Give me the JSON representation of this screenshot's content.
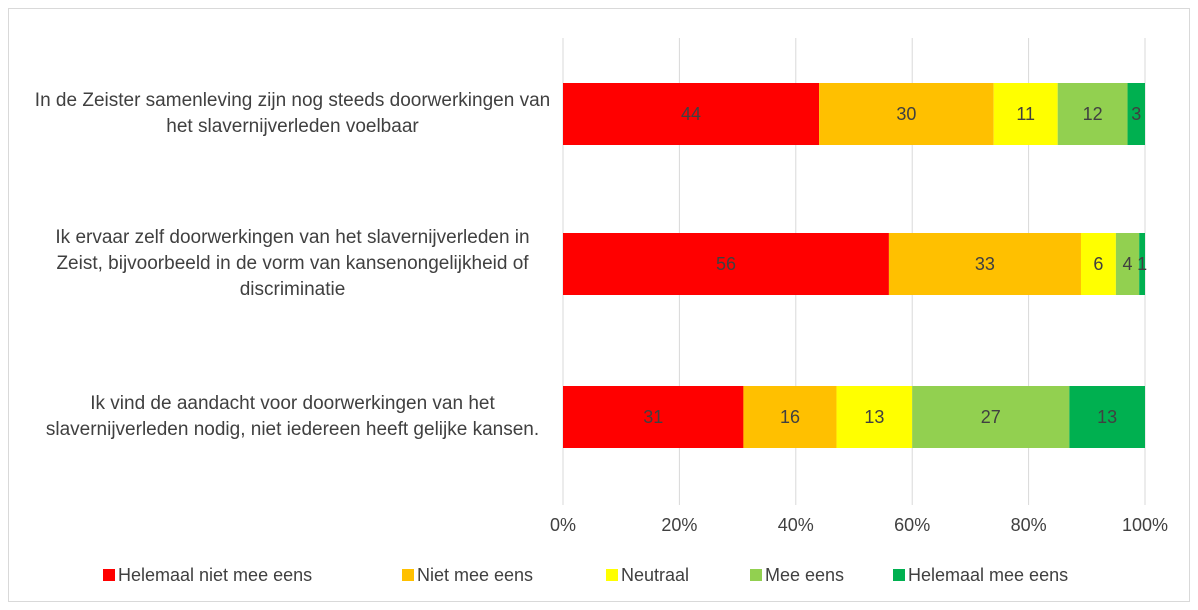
{
  "chart_data": {
    "type": "stacked_bar_horizontal",
    "categories": [
      "In de Zeister samenleving zijn nog steeds doorwerkingen van het slavernijverleden voelbaar",
      "Ik ervaar zelf doorwerkingen van het slavernijverleden in Zeist, bijvoorbeeld in de vorm van kansenongelijkheid of discriminatie",
      "Ik vind de aandacht voor doorwerkingen van het slavernijverleden nodig, niet iedereen heeft gelijke kansen."
    ],
    "series": [
      {
        "name": "Helemaal niet mee eens",
        "color": "#ff0000",
        "values": [
          44,
          56,
          31
        ]
      },
      {
        "name": "Niet mee eens",
        "color": "#ffc000",
        "values": [
          30,
          33,
          16
        ]
      },
      {
        "name": "Neutraal",
        "color": "#ffff00",
        "values": [
          11,
          6,
          13
        ]
      },
      {
        "name": "Mee eens",
        "color": "#92d050",
        "values": [
          12,
          4,
          27
        ]
      },
      {
        "name": "Helemaal mee eens",
        "color": "#00b050",
        "values": [
          3,
          1,
          13
        ]
      }
    ],
    "xlim": [
      0,
      100
    ],
    "xticks": [
      {
        "value": 0,
        "label": "0%"
      },
      {
        "value": 20,
        "label": "20%"
      },
      {
        "value": 40,
        "label": "40%"
      },
      {
        "value": 60,
        "label": "60%"
      },
      {
        "value": 80,
        "label": "80%"
      },
      {
        "value": 100,
        "label": "100%"
      }
    ],
    "grid": true,
    "legend": "bottom"
  }
}
